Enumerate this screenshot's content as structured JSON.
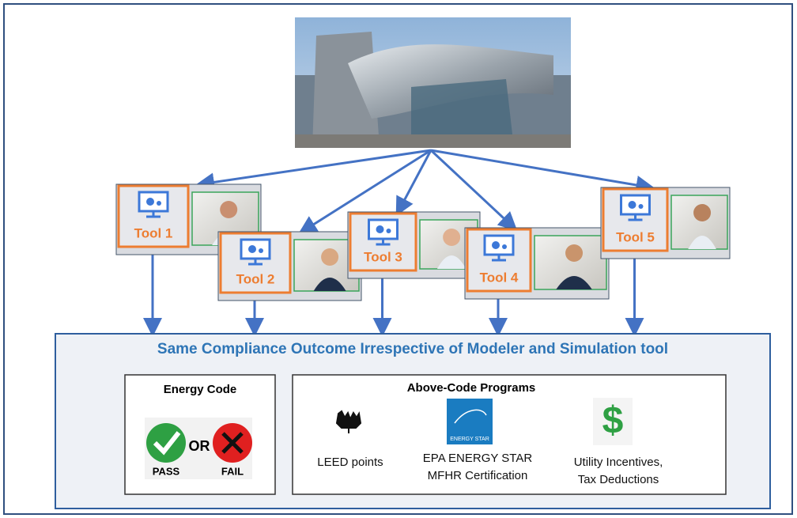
{
  "tools": [
    {
      "label": "Tool 1"
    },
    {
      "label": "Tool 2"
    },
    {
      "label": "Tool 3"
    },
    {
      "label": "Tool 4"
    },
    {
      "label": "Tool 5"
    }
  ],
  "outcome": {
    "title": "Same Compliance Outcome Irrespective of Modeler and Simulation tool"
  },
  "energy_code": {
    "title": "Energy Code",
    "pass": "PASS",
    "or": "OR",
    "fail": "FAIL"
  },
  "above_code": {
    "title": "Above-Code Programs",
    "items": [
      {
        "label_lines": [
          "LEED points"
        ]
      },
      {
        "logo": "ENERGY STAR",
        "label_lines": [
          "EPA ENERGY STAR",
          "MFHR Certification"
        ]
      },
      {
        "logo": "$",
        "label_lines": [
          "Utility Incentives,",
          "Tax Deductions"
        ]
      }
    ]
  }
}
